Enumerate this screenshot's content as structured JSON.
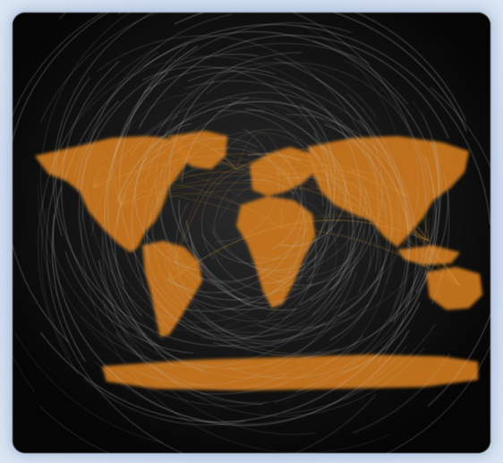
{
  "map": {
    "kind": "world map with great-circle flight route arcs",
    "colors": {
      "background": "#050505",
      "land": "#c7751f",
      "land_highlight": "#e09a3c",
      "routes": "#c8c8c8",
      "frame": "#c9d8ec"
    },
    "features": [
      "north-america",
      "south-america",
      "europe",
      "africa",
      "asia",
      "australia",
      "antarctica",
      "greenland"
    ]
  }
}
